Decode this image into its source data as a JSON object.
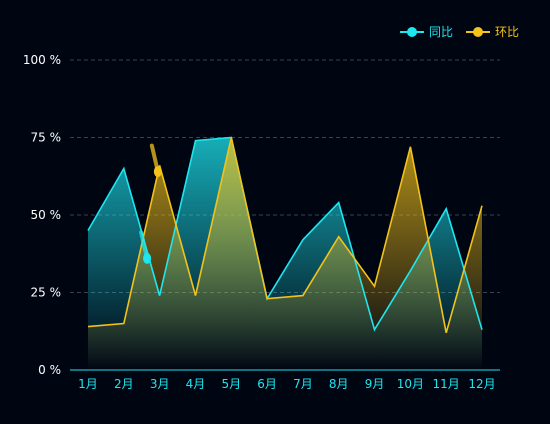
{
  "chart_data": {
    "type": "area",
    "categories": [
      "1月",
      "2月",
      "3月",
      "4月",
      "5月",
      "6月",
      "7月",
      "8月",
      "9月",
      "10月",
      "11月",
      "12月"
    ],
    "series": [
      {
        "name": "同比",
        "color": "#1ee6f0",
        "values": [
          45,
          65,
          24,
          74,
          75,
          23,
          42,
          54,
          13,
          32,
          52,
          13
        ]
      },
      {
        "name": "环比",
        "color": "#f3c21b",
        "values": [
          14,
          15,
          66,
          24,
          75,
          23,
          24,
          43,
          27,
          72,
          12,
          53
        ]
      }
    ],
    "yticks": [
      "0 %",
      "25 %",
      "50 %",
      "75 %",
      "100 %"
    ],
    "ylim": [
      0,
      100
    ],
    "grid": true,
    "legend_position": "top-right",
    "tooltip_markers": [
      {
        "series": 0,
        "x_position": 1.65,
        "value": 36
      },
      {
        "series": 1,
        "x_position": 1.95,
        "value": 64
      }
    ]
  }
}
